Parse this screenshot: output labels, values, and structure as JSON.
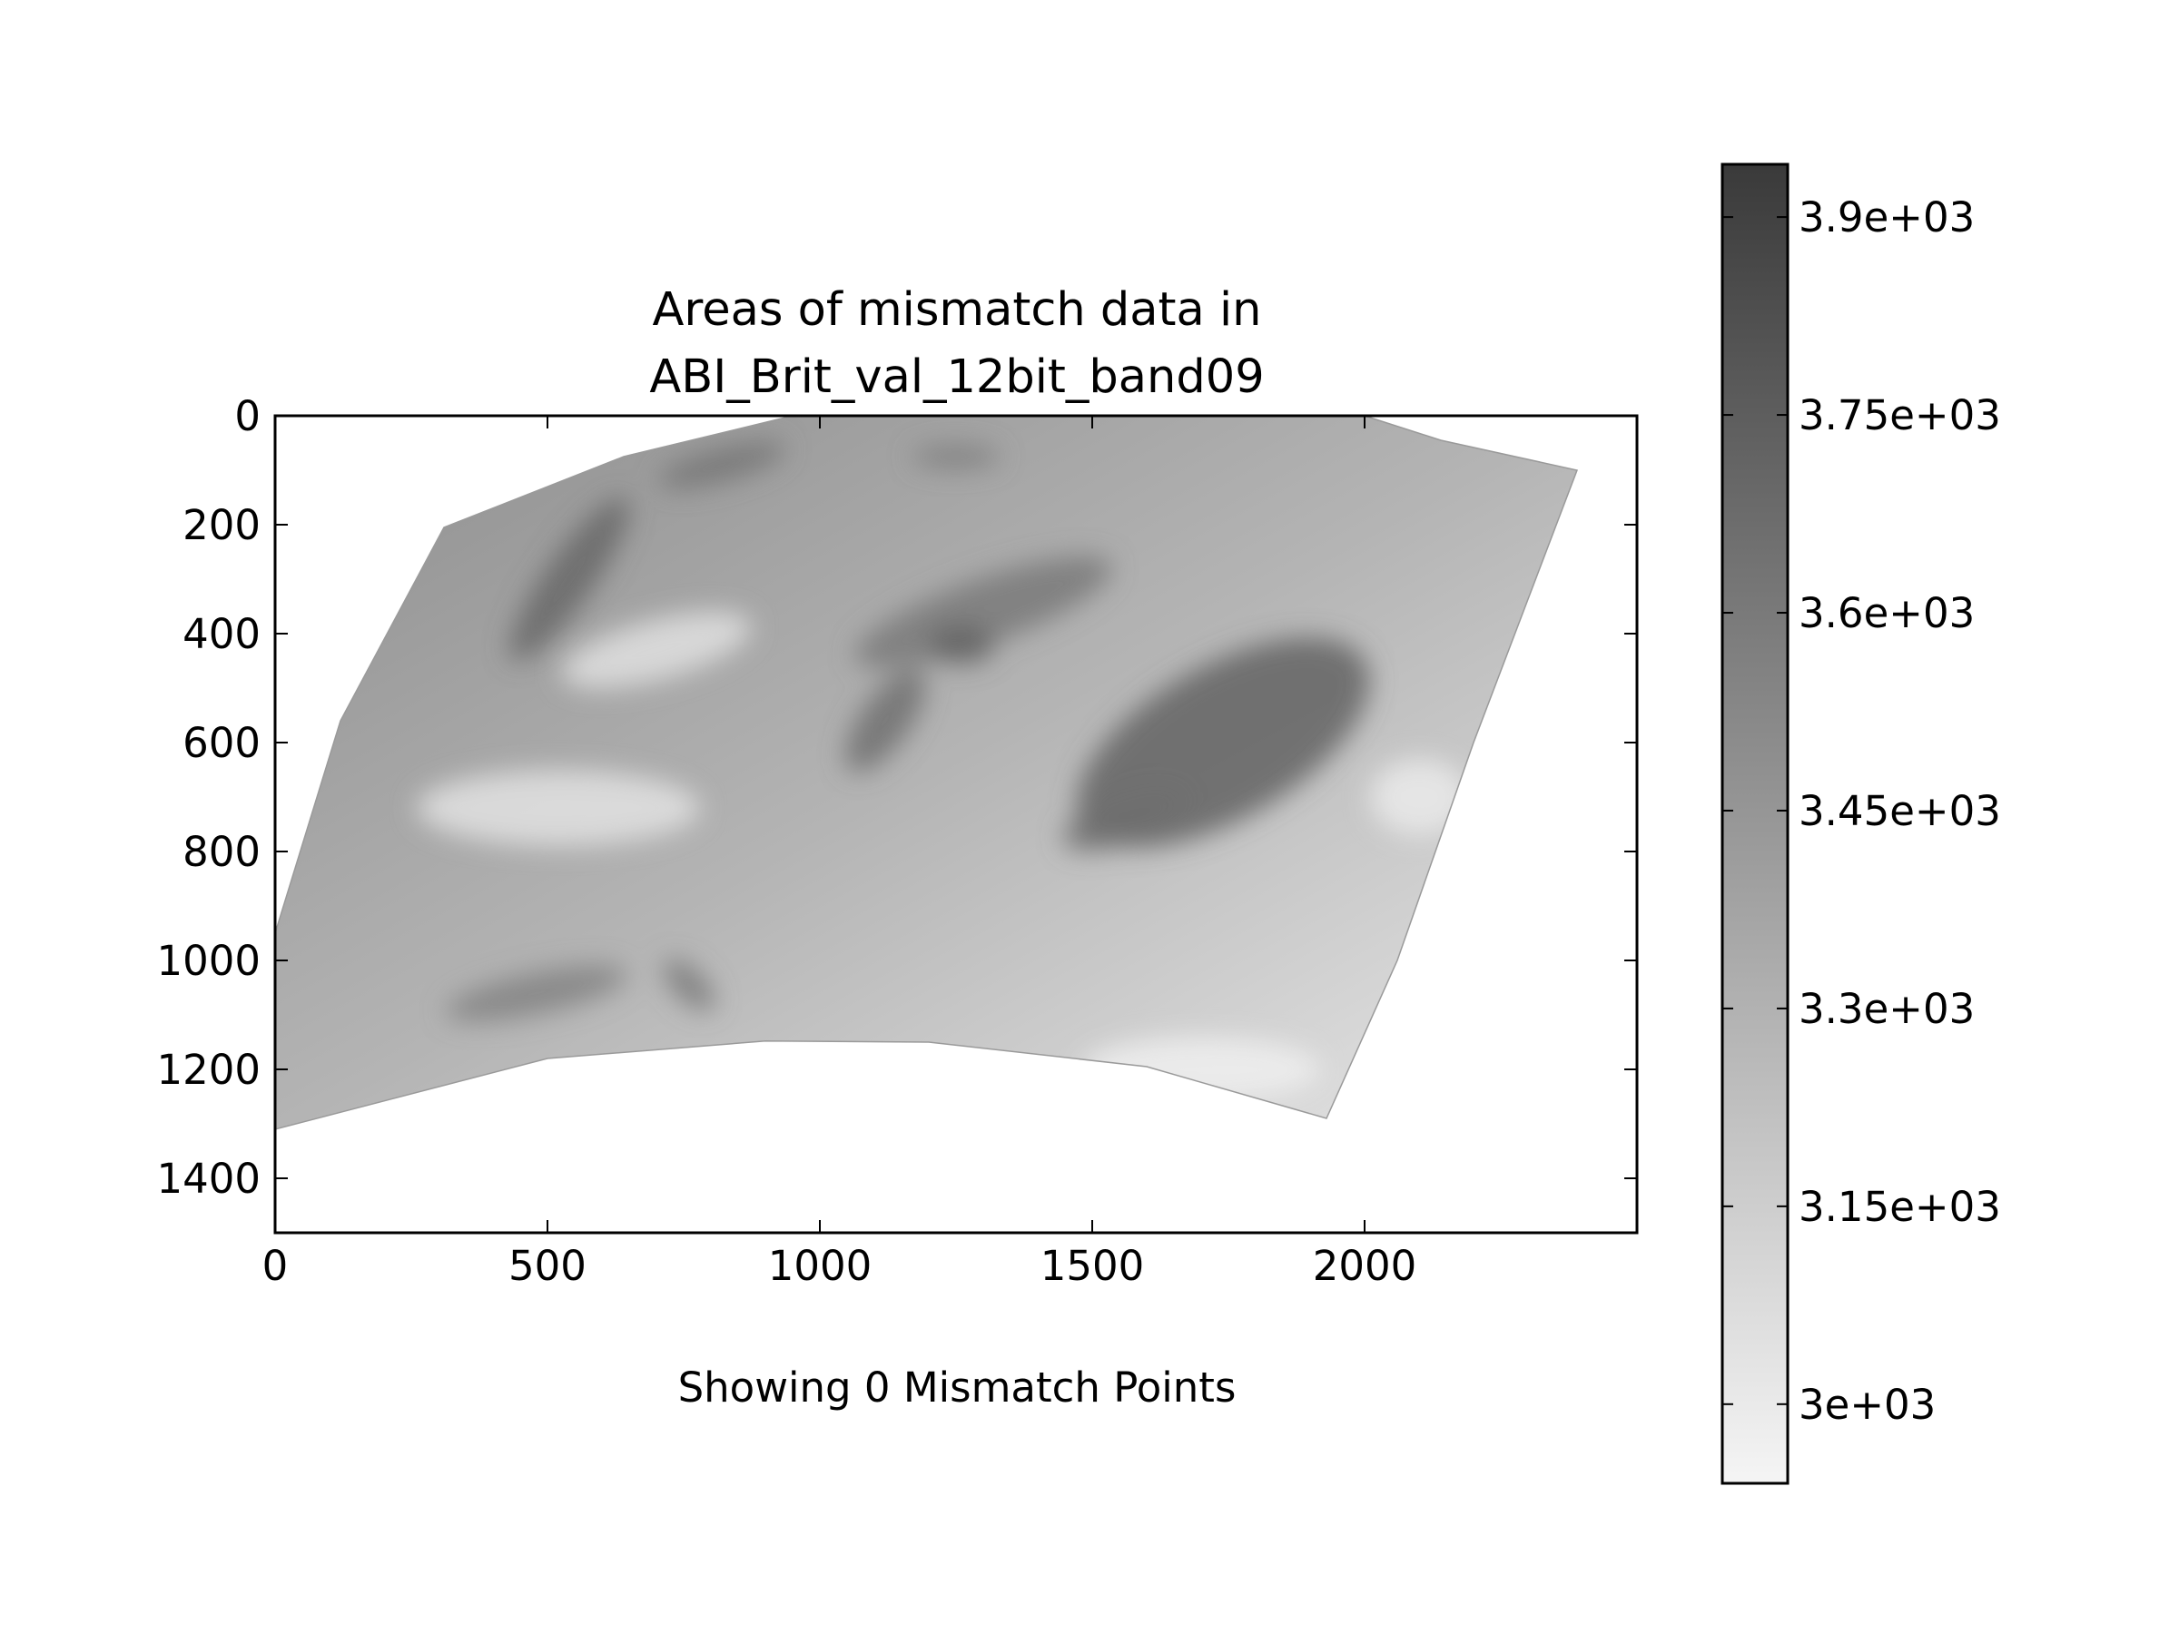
{
  "chart_data": {
    "type": "heatmap",
    "title": "Areas of mismatch data in\nABI_Brit_val_12bit_band09",
    "xlabel": "Showing 0 Mismatch Points",
    "ylabel": "",
    "xlim": [
      0,
      2500
    ],
    "ylim": [
      1500,
      0
    ],
    "y_inverted": true,
    "x_ticks": [
      0,
      500,
      1000,
      1500,
      2000
    ],
    "x_tick_labels": [
      "0",
      "500",
      "1000",
      "1500",
      "2000"
    ],
    "y_ticks": [
      0,
      200,
      400,
      600,
      800,
      1000,
      1200,
      1400
    ],
    "y_tick_labels": [
      "0",
      "200",
      "400",
      "600",
      "800",
      "1000",
      "1200",
      "1400"
    ],
    "grid": false,
    "mismatch_points": 0,
    "colormap": "gray_r",
    "colormap_colors": [
      "#f5f5f5",
      "#3a3a3a"
    ],
    "colorbar": {
      "range": [
        2940,
        3940
      ],
      "ticks": [
        3000,
        3150,
        3300,
        3450,
        3600,
        3750,
        3900
      ],
      "tick_labels": [
        "3e+03",
        "3.15e+03",
        "3.3e+03",
        "3.45e+03",
        "3.6e+03",
        "3.75e+03",
        "3.9e+03"
      ],
      "placement": "right"
    },
    "data_region_outline": [
      [
        0,
        1310
      ],
      [
        0,
        950
      ],
      [
        120,
        560
      ],
      [
        310,
        205
      ],
      [
        640,
        75
      ],
      [
        950,
        0
      ],
      [
        2000,
        0
      ],
      [
        2140,
        45
      ],
      [
        2390,
        100
      ],
      [
        2200,
        600
      ],
      [
        2060,
        1000
      ],
      [
        1930,
        1290
      ],
      [
        1600,
        1195
      ],
      [
        1200,
        1150
      ],
      [
        900,
        1148
      ],
      [
        500,
        1180
      ],
      [
        0,
        1310
      ]
    ],
    "dark_regions": [
      {
        "cx": 1740,
        "cy": 600,
        "rx": 300,
        "ry": 140,
        "rot": -30,
        "value": 3720
      },
      {
        "cx": 1560,
        "cy": 740,
        "rx": 120,
        "ry": 45,
        "rot": -20,
        "value": 3650
      },
      {
        "cx": 1300,
        "cy": 360,
        "rx": 250,
        "ry": 60,
        "rot": -20,
        "value": 3600
      },
      {
        "cx": 1120,
        "cy": 560,
        "rx": 110,
        "ry": 45,
        "rot": -55,
        "value": 3650
      },
      {
        "cx": 1260,
        "cy": 420,
        "rx": 60,
        "ry": 35,
        "rot": 0,
        "value": 3720
      },
      {
        "cx": 540,
        "cy": 300,
        "rx": 180,
        "ry": 45,
        "rot": -55,
        "value": 3700
      },
      {
        "cx": 820,
        "cy": 90,
        "rx": 120,
        "ry": 30,
        "rot": -15,
        "value": 3620
      },
      {
        "cx": 1250,
        "cy": 75,
        "rx": 80,
        "ry": 20,
        "rot": 0,
        "value": 3580
      },
      {
        "cx": 480,
        "cy": 1060,
        "rx": 170,
        "ry": 38,
        "rot": -12,
        "value": 3550
      },
      {
        "cx": 760,
        "cy": 1045,
        "rx": 60,
        "ry": 28,
        "rot": 45,
        "value": 3600
      }
    ],
    "light_regions": [
      {
        "cx": 520,
        "cy": 720,
        "rx": 260,
        "ry": 70,
        "rot": 0,
        "value": 3040
      },
      {
        "cx": 700,
        "cy": 430,
        "rx": 180,
        "ry": 55,
        "rot": -15,
        "value": 3060
      },
      {
        "cx": 1700,
        "cy": 1200,
        "rx": 220,
        "ry": 60,
        "rot": 0,
        "value": 2980
      },
      {
        "cx": 2100,
        "cy": 700,
        "rx": 90,
        "ry": 70,
        "rot": 0,
        "value": 3000
      }
    ]
  }
}
